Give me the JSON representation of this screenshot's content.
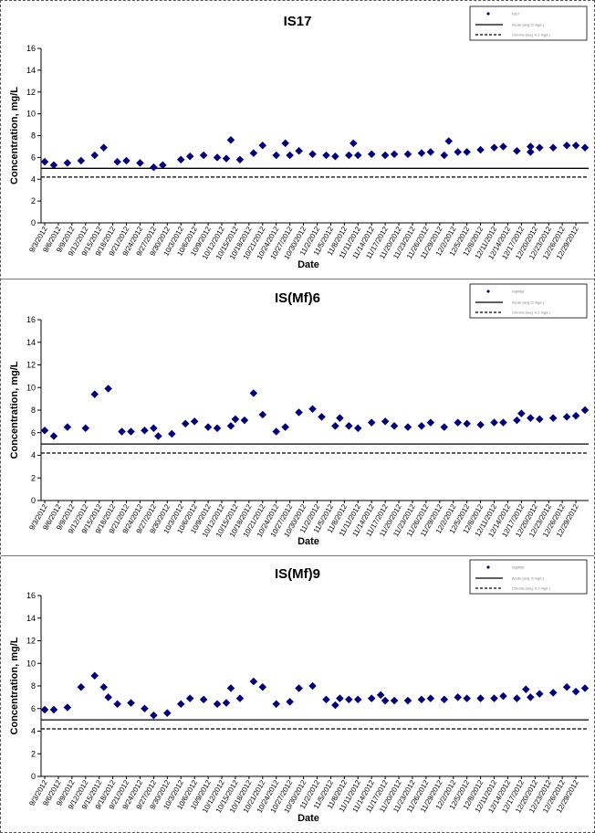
{
  "chart_data": [
    {
      "type": "scatter",
      "title": "IS17",
      "xlabel": "Date",
      "ylabel": "Concentration, mg/L",
      "ylim": [
        0,
        16
      ],
      "yticks": [
        0,
        2,
        4,
        6,
        8,
        10,
        12,
        14,
        16
      ],
      "xticklabels": [
        "9/3/2012",
        "9/6/2012",
        "9/9/2012",
        "9/12/2012",
        "9/15/2012",
        "9/18/2012",
        "9/21/2012",
        "9/24/2012",
        "9/27/2012",
        "9/30/2012",
        "10/3/2012",
        "10/6/2012",
        "10/9/2012",
        "10/12/2012",
        "10/15/2012",
        "10/18/2012",
        "10/21/2012",
        "10/24/2012",
        "10/27/2012",
        "10/30/2012",
        "11/2/2012",
        "11/5/2012",
        "11/8/2012",
        "11/11/2012",
        "11/14/2012",
        "11/17/2012",
        "11/20/2012",
        "11/23/2012",
        "11/26/2012",
        "11/29/2012",
        "12/2/2012",
        "12/5/2012",
        "12/8/2012",
        "12/11/2012",
        "12/14/2012",
        "12/17/2012",
        "12/20/2012",
        "12/23/2012",
        "12/26/2012",
        "12/29/2012"
      ],
      "x_range": [
        "9/3/2012",
        "12/31/2012"
      ],
      "legend": {
        "position": "top-right",
        "entries": [
          "IS17",
          "Acute (avg. 5 mg/L)",
          "Chronic (avg. 4.2 mg/L)"
        ]
      },
      "reference_lines": [
        {
          "value": 5.0,
          "style": "solid"
        },
        {
          "value": 4.2,
          "style": "dashed"
        }
      ],
      "series": [
        {
          "name": "IS17",
          "x": [
            "9/3/2012",
            "9/5/2012",
            "9/8/2012",
            "9/11/2012",
            "9/14/2012",
            "9/16/2012",
            "9/19/2012",
            "9/21/2012",
            "9/24/2012",
            "9/27/2012",
            "9/29/2012",
            "10/3/2012",
            "10/5/2012",
            "10/8/2012",
            "10/11/2012",
            "10/13/2012",
            "10/16/2012",
            "10/19/2012",
            "10/21/2012",
            "10/24/2012",
            "10/27/2012",
            "10/29/2012",
            "11/1/2012",
            "11/4/2012",
            "11/6/2012",
            "11/9/2012",
            "11/11/2012",
            "11/14/2012",
            "11/17/2012",
            "11/19/2012",
            "11/22/2012",
            "11/25/2012",
            "11/27/2012",
            "11/30/2012",
            "12/3/2012",
            "12/5/2012",
            "12/8/2012",
            "12/11/2012",
            "12/13/2012",
            "12/16/2012",
            "12/19/2012",
            "12/21/2012",
            "12/24/2012",
            "12/27/2012",
            "12/29/2012",
            "12/31/2012",
            "10/14/2012",
            "10/26/2012",
            "11/10/2012",
            "12/1/2012",
            "12/19/2012"
          ],
          "y": [
            5.6,
            5.3,
            5.5,
            5.7,
            6.2,
            6.9,
            5.6,
            5.7,
            5.5,
            5.1,
            5.3,
            5.8,
            6.1,
            6.2,
            6.0,
            5.9,
            5.8,
            6.4,
            7.1,
            6.2,
            6.2,
            6.6,
            6.3,
            6.2,
            6.1,
            6.2,
            6.2,
            6.3,
            6.2,
            6.3,
            6.3,
            6.4,
            6.5,
            6.2,
            6.5,
            6.5,
            6.7,
            6.9,
            7.0,
            6.6,
            6.5,
            6.9,
            6.9,
            7.1,
            7.1,
            6.9,
            7.6,
            7.3,
            7.3,
            7.5,
            7.0
          ]
        }
      ]
    },
    {
      "type": "scatter",
      "title": "IS(Mf)6",
      "xlabel": "Date",
      "ylabel": "Concentration, mg/L",
      "ylim": [
        0,
        16
      ],
      "yticks": [
        0,
        2,
        4,
        6,
        8,
        10,
        12,
        14,
        16
      ],
      "xticklabels": [
        "9/3/2012",
        "9/6/2012",
        "9/9/2012",
        "9/12/2012",
        "9/15/2012",
        "9/18/2012",
        "9/21/2012",
        "9/24/2012",
        "9/27/2012",
        "9/30/2012",
        "10/3/2012",
        "10/6/2012",
        "10/9/2012",
        "10/12/2012",
        "10/15/2012",
        "10/18/2012",
        "10/21/2012",
        "10/24/2012",
        "10/27/2012",
        "10/30/2012",
        "11/2/2012",
        "11/5/2012",
        "11/8/2012",
        "11/11/2012",
        "11/14/2012",
        "11/17/2012",
        "11/20/2012",
        "11/23/2012",
        "11/26/2012",
        "11/29/2012",
        "12/2/2012",
        "12/5/2012",
        "12/8/2012",
        "12/11/2012",
        "12/14/2012",
        "12/17/2012",
        "12/20/2012",
        "12/23/2012",
        "12/26/2012",
        "12/29/2012"
      ],
      "x_range": [
        "9/3/2012",
        "12/31/2012"
      ],
      "legend": {
        "position": "top-right",
        "entries": [
          "IS(Mf)6",
          "Acute (avg. 5 mg/L)",
          "Chronic (avg. 4.2 mg/L)"
        ]
      },
      "reference_lines": [
        {
          "value": 5.0,
          "style": "solid"
        },
        {
          "value": 4.2,
          "style": "dashed"
        }
      ],
      "series": [
        {
          "name": "IS(Mf)6",
          "x": [
            "9/3/2012",
            "9/5/2012",
            "9/8/2012",
            "9/12/2012",
            "9/14/2012",
            "9/17/2012",
            "9/20/2012",
            "9/22/2012",
            "9/25/2012",
            "9/28/2012",
            "10/1/2012",
            "10/4/2012",
            "10/6/2012",
            "10/9/2012",
            "10/11/2012",
            "10/14/2012",
            "10/17/2012",
            "10/19/2012",
            "10/21/2012",
            "10/24/2012",
            "10/26/2012",
            "10/29/2012",
            "11/1/2012",
            "11/3/2012",
            "11/6/2012",
            "11/9/2012",
            "11/11/2012",
            "11/14/2012",
            "11/17/2012",
            "11/19/2012",
            "11/22/2012",
            "11/25/2012",
            "11/27/2012",
            "11/30/2012",
            "12/3/2012",
            "12/5/2012",
            "12/8/2012",
            "12/11/2012",
            "12/13/2012",
            "12/16/2012",
            "12/19/2012",
            "12/21/2012",
            "12/24/2012",
            "12/27/2012",
            "12/29/2012",
            "12/31/2012",
            "9/27/2012",
            "10/15/2012",
            "11/7/2012",
            "12/17/2012"
          ],
          "y": [
            6.2,
            5.7,
            6.5,
            6.4,
            9.4,
            9.9,
            6.1,
            6.1,
            6.2,
            5.7,
            5.9,
            6.8,
            7.0,
            6.5,
            6.4,
            6.6,
            7.1,
            9.5,
            7.6,
            6.1,
            6.5,
            7.8,
            8.1,
            7.4,
            6.6,
            6.6,
            6.4,
            6.9,
            7.0,
            6.6,
            6.5,
            6.6,
            6.9,
            6.5,
            6.9,
            6.8,
            6.7,
            6.9,
            6.9,
            7.1,
            7.3,
            7.2,
            7.3,
            7.4,
            7.5,
            8.0,
            6.4,
            7.2,
            7.3,
            7.7
          ]
        }
      ]
    },
    {
      "type": "scatter",
      "title": "IS(Mf)9",
      "xlabel": "Date",
      "ylabel": "Concentration, mg/L",
      "ylim": [
        0,
        16
      ],
      "yticks": [
        0,
        2,
        4,
        6,
        8,
        10,
        12,
        14,
        16
      ],
      "xticklabels": [
        "9/3/2012",
        "9/6/2012",
        "9/9/2012",
        "9/12/2012",
        "9/15/2012",
        "9/18/2012",
        "9/21/2012",
        "9/24/2012",
        "9/27/2012",
        "9/30/2012",
        "10/3/2012",
        "10/6/2012",
        "10/9/2012",
        "10/12/2012",
        "10/15/2012",
        "10/18/2012",
        "10/21/2012",
        "10/24/2012",
        "10/27/2012",
        "10/30/2012",
        "11/2/2012",
        "11/5/2012",
        "11/8/2012",
        "11/11/2012",
        "11/14/2012",
        "11/17/2012",
        "11/20/2012",
        "11/23/2012",
        "11/26/2012",
        "11/29/2012",
        "12/2/2012",
        "12/5/2012",
        "12/8/2012",
        "12/11/2012",
        "12/14/2012",
        "12/17/2012",
        "12/20/2012",
        "12/23/2012",
        "12/26/2012",
        "12/29/2012"
      ],
      "x_range": [
        "9/3/2012",
        "12/31/2012"
      ],
      "legend": {
        "position": "top-right",
        "entries": [
          "IS(Mf)9",
          "Acute (avg. 5 mg/L)",
          "Chronic (avg. 4.2 mg/L)"
        ]
      },
      "reference_lines": [
        {
          "value": 5.0,
          "style": "solid"
        },
        {
          "value": 4.2,
          "style": "dashed"
        }
      ],
      "series": [
        {
          "name": "IS(Mf)9",
          "x": [
            "9/3/2012",
            "9/5/2012",
            "9/8/2012",
            "9/11/2012",
            "9/14/2012",
            "9/16/2012",
            "9/19/2012",
            "9/22/2012",
            "9/25/2012",
            "9/27/2012",
            "9/30/2012",
            "10/3/2012",
            "10/5/2012",
            "10/8/2012",
            "10/11/2012",
            "10/13/2012",
            "10/16/2012",
            "10/19/2012",
            "10/21/2012",
            "10/24/2012",
            "10/27/2012",
            "10/29/2012",
            "11/1/2012",
            "11/4/2012",
            "11/6/2012",
            "11/9/2012",
            "11/11/2012",
            "11/14/2012",
            "11/17/2012",
            "11/19/2012",
            "11/22/2012",
            "11/25/2012",
            "11/27/2012",
            "11/30/2012",
            "12/3/2012",
            "12/5/2012",
            "12/8/2012",
            "12/11/2012",
            "12/13/2012",
            "12/16/2012",
            "12/19/2012",
            "12/21/2012",
            "12/24/2012",
            "12/27/2012",
            "12/29/2012",
            "12/31/2012",
            "9/17/2012",
            "10/14/2012",
            "11/7/2012",
            "11/16/2012",
            "12/18/2012"
          ],
          "y": [
            5.9,
            5.9,
            6.1,
            7.9,
            8.9,
            7.9,
            6.4,
            6.5,
            6.0,
            5.4,
            5.6,
            6.4,
            6.9,
            6.8,
            6.4,
            6.5,
            6.9,
            8.4,
            7.9,
            6.4,
            6.6,
            7.8,
            8.0,
            6.8,
            6.3,
            6.8,
            6.8,
            6.9,
            6.7,
            6.7,
            6.7,
            6.8,
            6.9,
            6.8,
            7.0,
            6.9,
            6.9,
            6.9,
            7.1,
            6.9,
            7.0,
            7.3,
            7.4,
            7.9,
            7.5,
            7.8,
            7.0,
            7.8,
            6.9,
            7.2,
            7.7
          ]
        }
      ]
    }
  ]
}
